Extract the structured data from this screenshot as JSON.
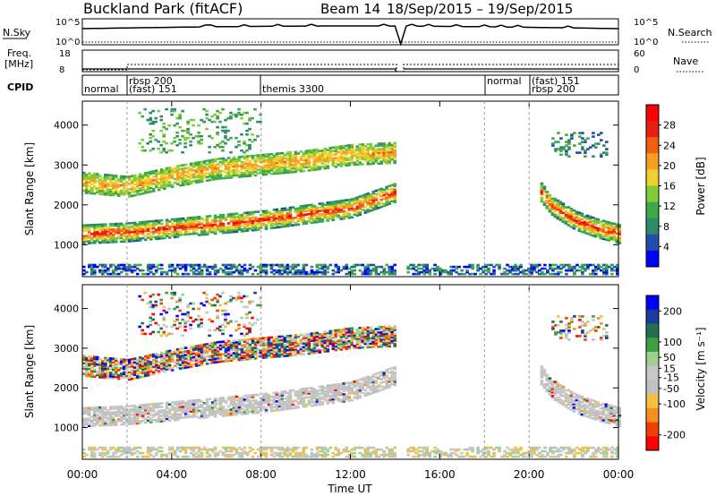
{
  "header": {
    "title": "Buckland Park (fitACF)",
    "beam": "Beam 14",
    "date_range": "18/Sep/2015 – 19/Sep/2015"
  },
  "panels": {
    "nsky": {
      "left_label": "N.Sky",
      "right_label": "N.Search",
      "y_ticks_left": [
        "10^5",
        "10^0"
      ],
      "y_ticks_right": [
        "10^5",
        "10^0"
      ]
    },
    "freq": {
      "left_label_1": "Freq.",
      "left_label_2": "[MHz]",
      "right_label": "Nave",
      "y_ticks_left": [
        "18",
        "8"
      ],
      "y_ticks_right": [
        "60",
        "0"
      ]
    },
    "cpid": {
      "left_label": "CPID",
      "segments": [
        "normal",
        "rbsp 200",
        "(fast) 151",
        "themis 3300",
        "normal",
        "(fast) 151",
        "rbsp 200"
      ]
    }
  },
  "colors": {
    "power_scale": [
      "#0000ff",
      "#1f4fa8",
      "#2e8a6a",
      "#3fa84a",
      "#7fcc3a",
      "#f0d030",
      "#f5a020",
      "#f06010",
      "#e82010",
      "#ff0000"
    ],
    "velocity_scale": [
      "#ff0000",
      "#f04000",
      "#f59020",
      "#f5c040",
      "#c0c0c0",
      "#c8c8c8",
      "#a0d090",
      "#3aa040",
      "#207050",
      "#1a3c9c",
      "#0000ff"
    ]
  },
  "chart_data": [
    {
      "type": "heatmap",
      "title": "",
      "xlabel": "",
      "ylabel": "Slant Range [km]",
      "x_ticks": [
        "00:00",
        "04:00",
        "08:00",
        "12:00",
        "16:00",
        "20:00",
        "00:00"
      ],
      "x_range_hours": [
        0,
        24
      ],
      "y_ticks": [
        1000,
        2000,
        3000,
        4000
      ],
      "ylim": [
        200,
        4600
      ],
      "colorbar": {
        "label": "Power [dB]",
        "ticks": [
          4,
          8,
          12,
          16,
          20,
          24,
          28
        ],
        "range": [
          0,
          32
        ]
      },
      "echo_bands": [
        {
          "name": "main",
          "t": [
            0,
            2,
            4,
            6,
            8,
            10,
            12,
            14
          ],
          "range": [
            1250,
            1300,
            1400,
            1500,
            1600,
            1750,
            1900,
            2300
          ],
          "power": 26
        },
        {
          "name": "upper",
          "t": [
            0,
            2,
            4,
            6,
            8,
            10,
            12,
            14
          ],
          "range": [
            2550,
            2450,
            2700,
            2900,
            3000,
            3100,
            3250,
            3300
          ],
          "power": 14
        },
        {
          "name": "evening",
          "t": [
            20.5,
            21,
            22,
            23,
            24
          ],
          "range": [
            2300,
            1950,
            1600,
            1400,
            1250
          ],
          "power": 26
        }
      ]
    },
    {
      "type": "heatmap",
      "title": "",
      "xlabel": "Time UT",
      "ylabel": "Slant Range [km]",
      "x_ticks": [
        "00:00",
        "04:00",
        "08:00",
        "12:00",
        "16:00",
        "20:00",
        "00:00"
      ],
      "x_range_hours": [
        0,
        24
      ],
      "y_ticks": [
        1000,
        2000,
        3000,
        4000
      ],
      "ylim": [
        200,
        4600
      ],
      "colorbar": {
        "label": "Velocity [m s⁻¹]",
        "ticks": [
          200,
          100,
          50,
          15,
          -15,
          -50,
          -100,
          -200
        ],
        "range": [
          -250,
          250
        ]
      }
    }
  ]
}
